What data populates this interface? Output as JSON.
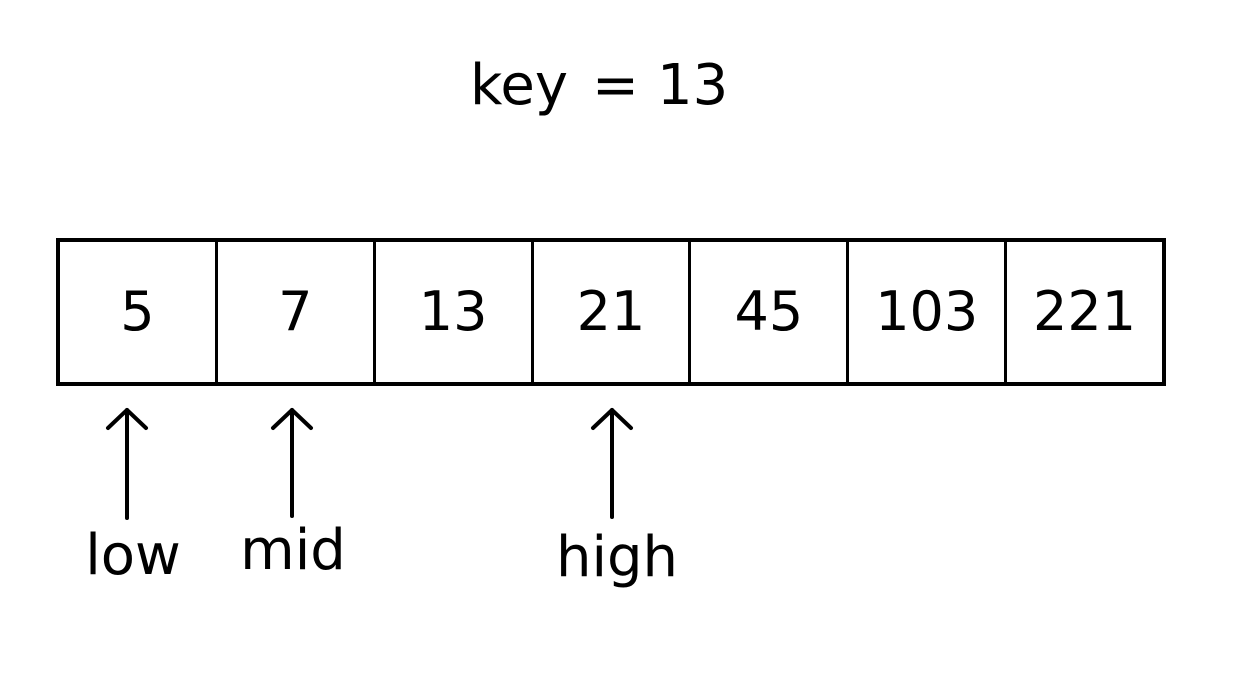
{
  "key": {
    "name": "key",
    "equals": "=",
    "value": "13"
  },
  "array": {
    "cells": [
      "5",
      "7",
      "13",
      "21",
      "45",
      "103",
      "221"
    ]
  },
  "pointers": [
    {
      "label": "low",
      "index": 0
    },
    {
      "label": "mid",
      "index": 1
    },
    {
      "label": "high",
      "index": 3
    }
  ],
  "colors": {
    "stroke": "#000000",
    "background": "#ffffff"
  }
}
